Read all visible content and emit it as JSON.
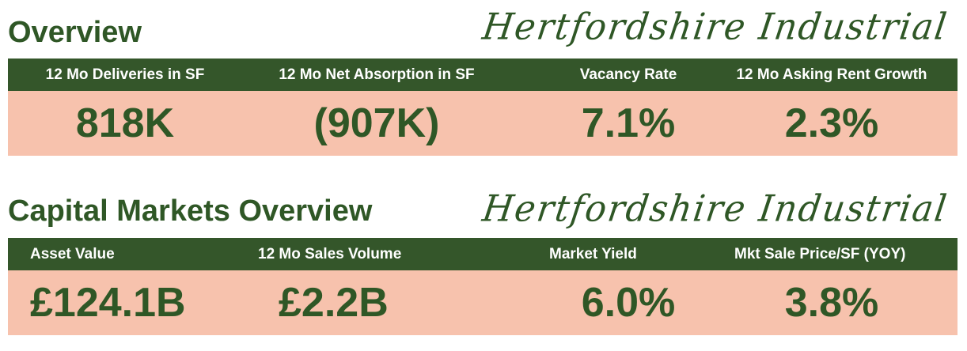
{
  "overview": {
    "title": "Overview",
    "brand": "Hertfordshire Industrial",
    "metrics": [
      {
        "label": "12 Mo Deliveries in SF",
        "value": "818K"
      },
      {
        "label": "12 Mo Net Absorption in SF",
        "value": "(907K)"
      },
      {
        "label": "Vacancy Rate",
        "value": "7.1%"
      },
      {
        "label": "12 Mo Asking Rent Growth",
        "value": "2.3%"
      }
    ]
  },
  "capital_markets": {
    "title": "Capital Markets Overview",
    "brand": "Hertfordshire Industrial",
    "metrics": [
      {
        "label": "Asset Value",
        "value": "£124.1B"
      },
      {
        "label": "12 Mo Sales Volume",
        "value": "£2.2B"
      },
      {
        "label": "Market Yield",
        "value": "6.0%"
      },
      {
        "label": "Mkt Sale Price/SF (YOY)",
        "value": "3.8%"
      }
    ]
  },
  "colors": {
    "dark_green": "#34562a",
    "text_green": "#2f5726",
    "salmon": "#f7c2ad"
  }
}
